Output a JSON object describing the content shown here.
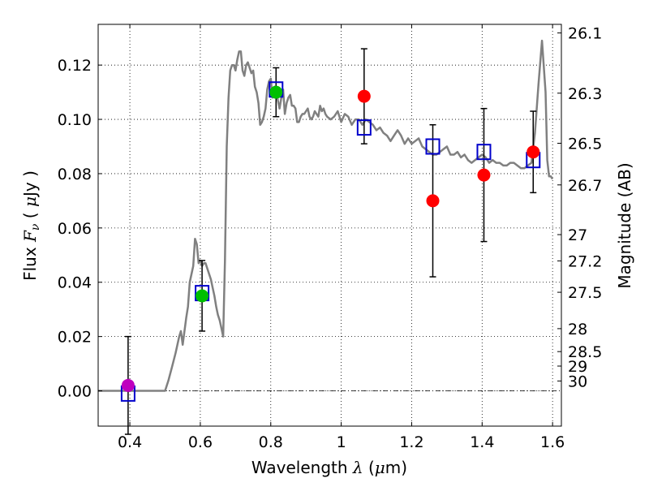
{
  "chart_data": {
    "type": "scatter",
    "title": "",
    "xlabel_prefix": "Wavelength",
    "xlabel_symbol": "λ",
    "xlabel_unit_open": "(",
    "xlabel_unit_mu": "μ",
    "xlabel_unit_rest": "m)",
    "ylabel_prefix": "Flux",
    "ylabel_symbol": "F",
    "ylabel_sub": "ν",
    "ylabel_unit_open": "(",
    "ylabel_unit_mu": "μ",
    "ylabel_unit_rest": "Jy )",
    "y2label": "Magnitude (AB)",
    "xlim": [
      0.31,
      1.625
    ],
    "ylim": [
      -0.013,
      0.135
    ],
    "grid": true,
    "x_ticks": [
      0.4,
      0.6,
      0.8,
      1.0,
      1.2,
      1.4,
      1.6
    ],
    "x_tick_labels": [
      "0.4",
      "0.6",
      "0.8",
      "1",
      "1.2",
      "1.4",
      "1.6"
    ],
    "y_ticks": [
      0.0,
      0.02,
      0.04,
      0.06,
      0.08,
      0.1,
      0.12
    ],
    "y_tick_labels": [
      "0.00",
      "0.02",
      "0.04",
      "0.06",
      "0.08",
      "0.10",
      "0.12"
    ],
    "y2_ticks": [
      {
        "label": "26.1",
        "mag": 26.1
      },
      {
        "label": "26.3",
        "mag": 26.3
      },
      {
        "label": "26.5",
        "mag": 26.5
      },
      {
        "label": "26.7",
        "mag": 26.7
      },
      {
        "label": "27",
        "mag": 27.0
      },
      {
        "label": "27.2",
        "mag": 27.2
      },
      {
        "label": "27.5",
        "mag": 27.5
      },
      {
        "label": "28",
        "mag": 28.0
      },
      {
        "label": "28.5",
        "mag": 28.5
      },
      {
        "label": "29",
        "mag": 29.0
      },
      {
        "label": "30",
        "mag": 30.0
      }
    ],
    "zero_line": 0,
    "model_color": "#808080",
    "model_x": [
      0.31,
      0.4,
      0.5,
      0.51,
      0.52,
      0.53,
      0.54,
      0.545,
      0.55,
      0.56,
      0.565,
      0.57,
      0.58,
      0.585,
      0.59,
      0.595,
      0.6,
      0.605,
      0.61,
      0.615,
      0.62,
      0.625,
      0.63,
      0.635,
      0.64,
      0.645,
      0.65,
      0.655,
      0.66,
      0.665,
      0.67,
      0.675,
      0.68,
      0.685,
      0.69,
      0.695,
      0.7,
      0.705,
      0.71,
      0.715,
      0.72,
      0.725,
      0.73,
      0.735,
      0.74,
      0.745,
      0.75,
      0.755,
      0.76,
      0.765,
      0.77,
      0.775,
      0.78,
      0.785,
      0.79,
      0.795,
      0.8,
      0.805,
      0.81,
      0.815,
      0.82,
      0.825,
      0.83,
      0.835,
      0.84,
      0.845,
      0.85,
      0.855,
      0.86,
      0.865,
      0.87,
      0.875,
      0.88,
      0.885,
      0.89,
      0.895,
      0.9,
      0.905,
      0.91,
      0.915,
      0.92,
      0.925,
      0.93,
      0.935,
      0.94,
      0.945,
      0.95,
      0.955,
      0.96,
      0.97,
      0.98,
      0.99,
      1.0,
      1.01,
      1.02,
      1.03,
      1.04,
      1.05,
      1.06,
      1.07,
      1.08,
      1.09,
      1.1,
      1.11,
      1.12,
      1.13,
      1.14,
      1.15,
      1.16,
      1.17,
      1.18,
      1.19,
      1.2,
      1.21,
      1.22,
      1.23,
      1.24,
      1.25,
      1.26,
      1.27,
      1.28,
      1.29,
      1.3,
      1.31,
      1.32,
      1.33,
      1.34,
      1.35,
      1.36,
      1.37,
      1.38,
      1.39,
      1.4,
      1.41,
      1.42,
      1.43,
      1.44,
      1.45,
      1.46,
      1.47,
      1.48,
      1.49,
      1.5,
      1.51,
      1.52,
      1.53,
      1.54,
      1.55,
      1.56,
      1.57,
      1.58,
      1.585,
      1.59,
      1.595,
      1.6,
      1.61,
      1.625
    ],
    "model_y": [
      0.0,
      0.0,
      0.0,
      0.004,
      0.009,
      0.014,
      0.02,
      0.022,
      0.017,
      0.027,
      0.031,
      0.04,
      0.046,
      0.056,
      0.054,
      0.047,
      0.048,
      0.046,
      0.047,
      0.047,
      0.045,
      0.043,
      0.041,
      0.038,
      0.035,
      0.031,
      0.028,
      0.026,
      0.023,
      0.02,
      0.048,
      0.09,
      0.108,
      0.118,
      0.12,
      0.12,
      0.118,
      0.122,
      0.125,
      0.125,
      0.118,
      0.116,
      0.12,
      0.121,
      0.119,
      0.117,
      0.118,
      0.112,
      0.11,
      0.106,
      0.098,
      0.099,
      0.101,
      0.104,
      0.111,
      0.114,
      0.115,
      0.108,
      0.112,
      0.112,
      0.107,
      0.104,
      0.108,
      0.111,
      0.102,
      0.106,
      0.108,
      0.109,
      0.105,
      0.105,
      0.104,
      0.099,
      0.099,
      0.101,
      0.102,
      0.102,
      0.103,
      0.104,
      0.101,
      0.1,
      0.101,
      0.103,
      0.102,
      0.101,
      0.105,
      0.103,
      0.104,
      0.102,
      0.101,
      0.1,
      0.101,
      0.103,
      0.099,
      0.102,
      0.101,
      0.098,
      0.1,
      0.1,
      0.098,
      0.1,
      0.099,
      0.098,
      0.096,
      0.097,
      0.095,
      0.094,
      0.092,
      0.094,
      0.096,
      0.094,
      0.091,
      0.093,
      0.091,
      0.092,
      0.093,
      0.09,
      0.089,
      0.088,
      0.087,
      0.087,
      0.088,
      0.089,
      0.09,
      0.087,
      0.087,
      0.088,
      0.086,
      0.087,
      0.085,
      0.084,
      0.085,
      0.086,
      0.087,
      0.086,
      0.084,
      0.085,
      0.084,
      0.084,
      0.083,
      0.083,
      0.084,
      0.084,
      0.083,
      0.082,
      0.082,
      0.083,
      0.084,
      0.095,
      0.113,
      0.129,
      0.11,
      0.085,
      0.079,
      0.079,
      0.078
    ],
    "model_points": {
      "x": [
        0.395,
        0.605,
        0.815,
        1.065,
        1.26,
        1.405,
        1.545
      ],
      "y": [
        -0.001,
        0.036,
        0.111,
        0.097,
        0.09,
        0.088,
        0.085
      ],
      "marker": "open-square",
      "color": "#0000cc"
    },
    "observations": [
      {
        "x": 0.395,
        "y": 0.002,
        "err_lo": 0.018,
        "err_hi": 0.018,
        "color": "#bf00bf"
      },
      {
        "x": 0.605,
        "y": 0.035,
        "err_lo": 0.013,
        "err_hi": 0.013,
        "color": "#00bf00"
      },
      {
        "x": 0.815,
        "y": 0.11,
        "err_lo": 0.009,
        "err_hi": 0.009,
        "color": "#00bf00"
      },
      {
        "x": 1.065,
        "y": 0.1085,
        "err_lo": 0.0175,
        "err_hi": 0.0175,
        "color": "#ff0000"
      },
      {
        "x": 1.26,
        "y": 0.07,
        "err_lo": 0.028,
        "err_hi": 0.028,
        "color": "#ff0000"
      },
      {
        "x": 1.405,
        "y": 0.0795,
        "err_lo": 0.0245,
        "err_hi": 0.0245,
        "color": "#ff0000"
      },
      {
        "x": 1.545,
        "y": 0.088,
        "err_lo": 0.015,
        "err_hi": 0.015,
        "color": "#ff0000"
      }
    ]
  }
}
